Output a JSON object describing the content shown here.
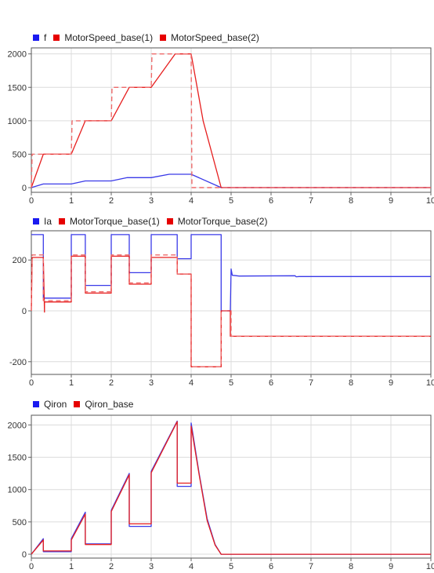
{
  "colors": {
    "blue": "#3a3ae8",
    "red": "#e61e1e",
    "red_dashed": "#ee6a6a",
    "grid": "#dcdcdc",
    "axis": "#666666"
  },
  "chart_data": [
    {
      "type": "line",
      "legend": [
        "f",
        "MotorSpeed_base(1)",
        "MotorSpeed_base(2)"
      ],
      "legend_colors": [
        "#1a1af0",
        "#e60000",
        "#e60000"
      ],
      "xlim": [
        0,
        10
      ],
      "ylim": [
        -70,
        2090
      ],
      "x_ticks": [
        0,
        1,
        2,
        3,
        4,
        5,
        6,
        7,
        8,
        9,
        10
      ],
      "y_ticks": [
        0,
        500,
        1000,
        1500,
        2000
      ],
      "y_tick_labels": [
        "0",
        "500",
        "1000",
        "1500",
        "2000"
      ],
      "grid": true,
      "series": [
        {
          "name": "f",
          "color": "#3a3ae8",
          "dash": false,
          "x": [
            0,
            0.3,
            1.0,
            1.35,
            2.0,
            2.4,
            3.0,
            3.45,
            4.0,
            4.75,
            10
          ],
          "y": [
            0,
            55,
            55,
            100,
            100,
            150,
            150,
            200,
            200,
            0,
            0
          ]
        },
        {
          "name": "MotorSpeed_base(1)",
          "color": "#e61e1e",
          "dash": false,
          "x": [
            0,
            0.3,
            1.0,
            1.35,
            2.0,
            2.45,
            3.0,
            3.3,
            3.6,
            4.0,
            4.3,
            4.75,
            10
          ],
          "y": [
            0,
            500,
            500,
            1000,
            1000,
            1500,
            1500,
            1750,
            2000,
            2000,
            1000,
            0,
            0
          ]
        },
        {
          "name": "MotorSpeed_base(2)",
          "color": "#ee6a6a",
          "dash": true,
          "x": [
            0,
            0.02,
            1.0,
            1.02,
            2.0,
            2.02,
            3.0,
            3.02,
            4.0,
            4.02,
            10
          ],
          "y": [
            0,
            500,
            500,
            1000,
            1000,
            1500,
            1500,
            2000,
            2000,
            0,
            0
          ]
        }
      ]
    },
    {
      "type": "line",
      "legend": [
        "Ia",
        "MotorTorque_base(1)",
        "MotorTorque_base(2)"
      ],
      "legend_colors": [
        "#1a1af0",
        "#e60000",
        "#e60000"
      ],
      "xlim": [
        0,
        10
      ],
      "ylim": [
        -250,
        315
      ],
      "x_ticks": [
        0,
        1,
        2,
        3,
        4,
        5,
        6,
        7,
        8,
        9,
        10
      ],
      "y_ticks": [
        -200,
        0,
        200
      ],
      "y_tick_labels": [
        "-200",
        "0",
        "200"
      ],
      "grid": true,
      "series": [
        {
          "name": "Ia",
          "color": "#3a3ae8",
          "dash": false,
          "x": [
            0,
            0.3,
            0.3,
            1.0,
            1.0,
            1.35,
            1.35,
            2.0,
            2.0,
            2.45,
            2.45,
            3.0,
            3.0,
            3.65,
            3.65,
            4.0,
            4.0,
            4.75,
            4.75,
            4.98,
            5.0,
            5.03,
            5.2,
            6.6,
            6.63,
            6.7,
            10
          ],
          "y": [
            300,
            300,
            50,
            50,
            300,
            300,
            100,
            100,
            300,
            300,
            150,
            150,
            300,
            300,
            205,
            205,
            300,
            300,
            0,
            0,
            165,
            140,
            137,
            138,
            134,
            135,
            135
          ]
        },
        {
          "name": "MotorTorque_base(1)",
          "color": "#e61e1e",
          "dash": false,
          "x": [
            0,
            0.02,
            0.3,
            0.33,
            0.33,
            1.0,
            1.0,
            1.35,
            1.35,
            2.0,
            2.0,
            2.45,
            2.45,
            3.0,
            3.0,
            3.65,
            3.65,
            4.0,
            4.0,
            4.75,
            4.75,
            4.98,
            4.98,
            10
          ],
          "y": [
            0,
            210,
            210,
            -5,
            35,
            35,
            215,
            215,
            70,
            70,
            215,
            215,
            105,
            105,
            210,
            210,
            145,
            145,
            -220,
            -220,
            0,
            0,
            -100,
            -100
          ]
        },
        {
          "name": "MotorTorque_base(2)",
          "color": "#ee6a6a",
          "dash": true,
          "x": [
            0,
            0.02,
            0.3,
            0.3,
            1.0,
            1.0,
            1.35,
            1.35,
            2.0,
            2.0,
            2.45,
            2.45,
            3.0,
            3.0,
            3.65,
            3.65,
            4.0,
            4.0,
            4.75,
            4.75,
            5.0,
            5.0,
            10
          ],
          "y": [
            0,
            220,
            220,
            40,
            40,
            220,
            220,
            75,
            75,
            220,
            220,
            110,
            110,
            220,
            220,
            145,
            145,
            -220,
            -220,
            0,
            0,
            -100,
            -100
          ]
        }
      ]
    },
    {
      "type": "line",
      "legend": [
        "Qiron",
        "Qiron_base"
      ],
      "legend_colors": [
        "#1a1af0",
        "#e60000"
      ],
      "xlim": [
        0,
        10
      ],
      "ylim": [
        -60,
        2150
      ],
      "x_ticks": [
        0,
        1,
        2,
        3,
        4,
        5,
        6,
        7,
        8,
        9,
        10
      ],
      "y_ticks": [
        0,
        500,
        1000,
        1500,
        2000
      ],
      "y_tick_labels": [
        "0",
        "500",
        "1000",
        "1500",
        "2000"
      ],
      "grid": true,
      "series": [
        {
          "name": "Qiron",
          "color": "#3a3ae8",
          "dash": false,
          "x": [
            0,
            0.3,
            0.3,
            1.0,
            1.0,
            1.35,
            1.35,
            2.0,
            2.0,
            2.45,
            2.45,
            3.0,
            3.0,
            3.65,
            3.65,
            4.0,
            4.0,
            4.2,
            4.4,
            4.6,
            4.75,
            10
          ],
          "y": [
            0,
            240,
            40,
            40,
            240,
            650,
            160,
            160,
            680,
            1250,
            430,
            430,
            1280,
            2060,
            1050,
            1050,
            2030,
            1250,
            550,
            150,
            0,
            0
          ]
        },
        {
          "name": "Qiron_base",
          "color": "#e61e1e",
          "dash": false,
          "x": [
            0,
            0.3,
            0.3,
            1.0,
            1.0,
            1.35,
            1.35,
            2.0,
            2.0,
            2.45,
            2.45,
            3.0,
            3.0,
            3.65,
            3.65,
            4.0,
            4.0,
            4.2,
            4.4,
            4.6,
            4.75,
            10
          ],
          "y": [
            0,
            220,
            50,
            50,
            220,
            620,
            150,
            150,
            660,
            1230,
            470,
            470,
            1260,
            2050,
            1100,
            1100,
            1980,
            1230,
            520,
            140,
            0,
            0
          ]
        }
      ]
    }
  ]
}
